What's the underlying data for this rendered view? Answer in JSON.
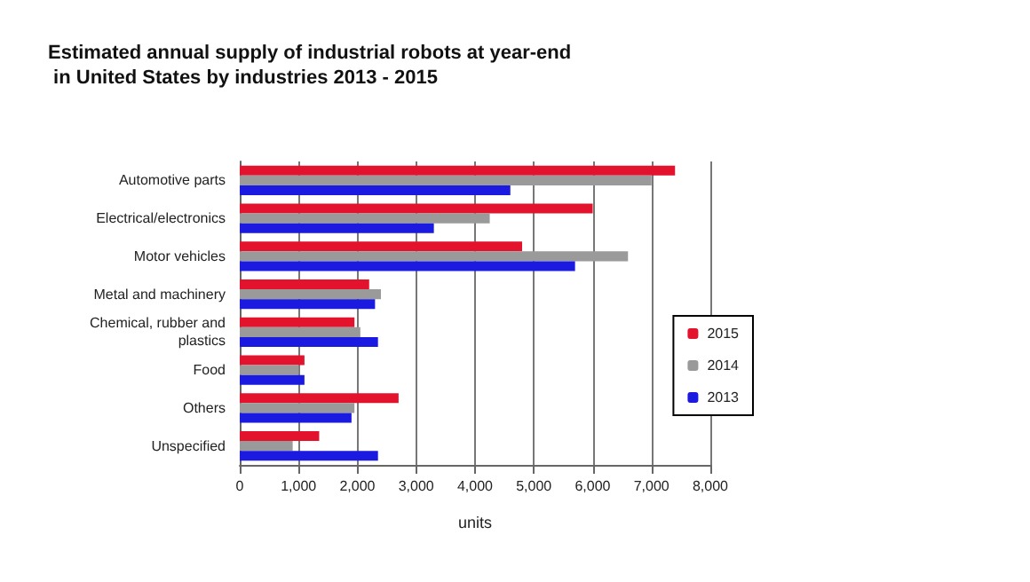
{
  "chart_data": {
    "type": "bar",
    "orientation": "horizontal",
    "title": "Estimated annual supply of industrial robots at year-end\n in United States by industries 2013 - 2015",
    "xlabel": "units",
    "categories": [
      "Automotive parts",
      "Electrical/electronics",
      "Motor vehicles",
      "Metal and machinery",
      "Chemical, rubber and\nplastics",
      "Food",
      "Others",
      "Unspecified"
    ],
    "series": [
      {
        "name": "2015",
        "color": "#e3122d",
        "values": [
          7400,
          6000,
          4800,
          2200,
          1950,
          1100,
          2700,
          1350
        ]
      },
      {
        "name": "2014",
        "color": "#9a9a9a",
        "values": [
          7000,
          4250,
          6600,
          2400,
          2050,
          1000,
          1950,
          900
        ]
      },
      {
        "name": "2013",
        "color": "#1a1ae0",
        "values": [
          4600,
          3300,
          5700,
          2300,
          2350,
          1100,
          1900,
          2350
        ]
      }
    ],
    "xlim": [
      0,
      8000
    ],
    "xticks": [
      0,
      {
        "value": 1000,
        "label": "1,000"
      },
      {
        "value": 2000,
        "label": "2,000"
      },
      {
        "value": 3000,
        "label": "3,000"
      },
      {
        "value": 4000,
        "label": "4,000"
      },
      {
        "value": 5000,
        "label": "5,000"
      },
      {
        "value": 6000,
        "label": "6,000"
      },
      {
        "value": 7000,
        "label": "7,000"
      },
      {
        "value": 8000,
        "label": "8,000"
      }
    ],
    "grid": "x",
    "legend": "right"
  }
}
